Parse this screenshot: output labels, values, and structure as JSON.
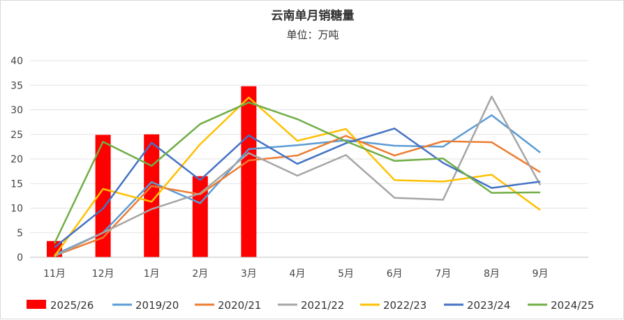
{
  "chart_data": {
    "type": "bar+line",
    "title": "云南单月销糖量",
    "subtitle": "单位：万吨",
    "categories": [
      "11月",
      "12月",
      "1月",
      "2月",
      "3月",
      "4月",
      "5月",
      "6月",
      "7月",
      "8月",
      "9月"
    ],
    "ylim": [
      0,
      40
    ],
    "yticks": [
      0,
      5,
      10,
      15,
      20,
      25,
      30,
      35,
      40
    ],
    "grid": true,
    "legend_position": "bottom",
    "bar_series": {
      "name": "2025/26",
      "color": "#ff0000",
      "values": [
        3.3,
        24.9,
        25.0,
        16.5,
        34.8
      ]
    },
    "series": [
      {
        "name": "2019/20",
        "color": "#5b9bd5",
        "values": [
          0.5,
          5.0,
          15.3,
          11.0,
          22.0,
          22.8,
          23.8,
          22.7,
          22.5,
          28.9,
          21.3
        ]
      },
      {
        "name": "2020/21",
        "color": "#ed7d31",
        "values": [
          0.3,
          4.0,
          14.5,
          12.8,
          19.7,
          20.7,
          24.7,
          20.7,
          23.6,
          23.4,
          17.3
        ]
      },
      {
        "name": "2021/22",
        "color": "#a5a5a5",
        "values": [
          0.2,
          5.0,
          9.8,
          13.0,
          21.2,
          16.6,
          20.8,
          12.1,
          11.7,
          32.7,
          14.7
        ]
      },
      {
        "name": "2022/23",
        "color": "#ffc000",
        "values": [
          0.2,
          13.9,
          11.3,
          23.0,
          32.5,
          23.7,
          26.1,
          15.7,
          15.4,
          16.8,
          9.6
        ]
      },
      {
        "name": "2023/24",
        "color": "#4472c4",
        "values": [
          2.0,
          9.9,
          23.3,
          15.7,
          24.8,
          19.0,
          23.2,
          26.2,
          19.2,
          14.1,
          15.4
        ]
      },
      {
        "name": "2024/25",
        "color": "#70ad47",
        "values": [
          2.8,
          23.5,
          18.6,
          27.1,
          31.5,
          28.1,
          23.6,
          19.6,
          20.1,
          13.1,
          13.2
        ]
      }
    ]
  }
}
